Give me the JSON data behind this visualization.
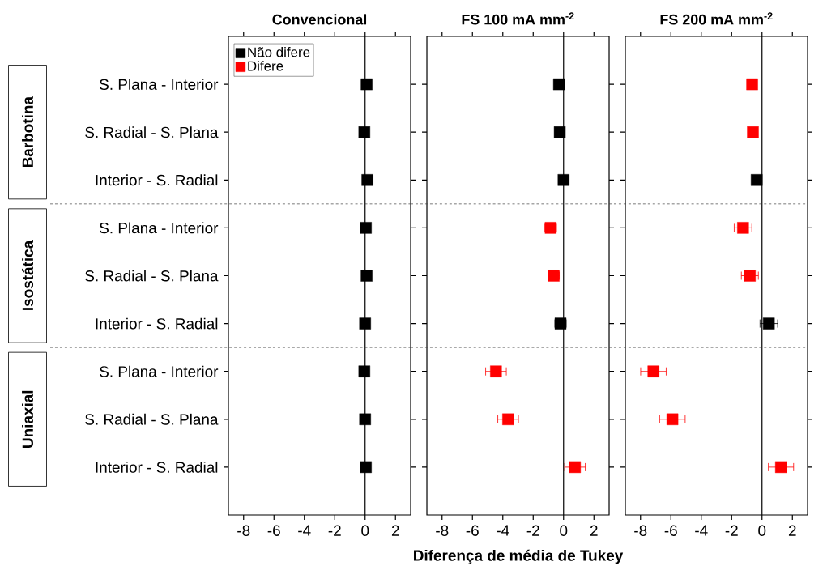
{
  "chart_data": [
    {
      "type": "scatter",
      "orientation": "horizontal",
      "title": "Convencional",
      "categories": [
        "S. Plana - Interior",
        "S. Radial - S. Plana",
        "Interior - S. Radial",
        "S. Plana - Interior",
        "S. Radial - S. Plana",
        "Interior - S. Radial",
        "S. Plana - Interior",
        "S. Radial - S. Plana",
        "Interior - S. Radial"
      ],
      "xlim": [
        -9,
        3
      ],
      "xticks": [
        -8,
        -6,
        -4,
        -2,
        0,
        2
      ],
      "marker": "square",
      "legend": "top left",
      "series": [
        {
          "name": "Não difere",
          "color": "#000000",
          "values": [
            0.1,
            -0.05,
            0.15,
            0.05,
            0.1,
            0,
            -0.05,
            0,
            0.05
          ]
        },
        {
          "name": "Difere",
          "color": "#ff0000",
          "values": [
            null,
            null,
            null,
            null,
            null,
            null,
            null,
            null,
            null
          ]
        }
      ],
      "ref_lines": [
        {
          "axis": "x",
          "value": 0
        }
      ],
      "annotations": [
        "Barbotina",
        "Isostática",
        "Uniaxial"
      ]
    },
    {
      "type": "scatter",
      "orientation": "horizontal",
      "title": "FS 100 mA mm$^{-2}$",
      "xlabel": "Diferença de média de Tukey",
      "categories": [
        null,
        null,
        null,
        null,
        null,
        null,
        null,
        null,
        null
      ],
      "xlim": [
        -9,
        3
      ],
      "xticks": [
        -8,
        -6,
        -4,
        -2,
        0,
        2
      ],
      "marker": "square",
      "tick_labels": "x",
      "series": [
        {
          "color": "#000000",
          "values": [
            -0.3,
            -0.25,
            0,
            null,
            null,
            -0.2,
            null,
            null,
            null
          ],
          "errors": [
            null,
            null,
            null,
            null,
            null,
            0.37,
            null,
            null,
            null
          ]
        },
        {
          "color": "#ff0000",
          "values": [
            null,
            null,
            null,
            -0.85,
            -0.65,
            null,
            -4.45,
            -3.65,
            0.75
          ],
          "errors": [
            null,
            null,
            null,
            0.38,
            0.37,
            null,
            0.68,
            0.68,
            0.68
          ]
        }
      ],
      "ref_lines": [
        {
          "axis": "x",
          "value": 0
        }
      ]
    },
    {
      "type": "scatter",
      "orientation": "horizontal",
      "title": "FS 200 mA mm$^{-2}$",
      "categories": [
        null,
        null,
        null,
        null,
        null,
        null,
        null,
        null,
        null
      ],
      "xlim": [
        -9,
        3
      ],
      "xticks": [
        -8,
        -6,
        -4,
        -2,
        0,
        2
      ],
      "marker": "square",
      "tick_labels": "x",
      "series": [
        {
          "color": "#000000",
          "values": [
            null,
            null,
            -0.35,
            null,
            null,
            0.45,
            null,
            null,
            null
          ],
          "errors": [
            null,
            null,
            null,
            null,
            null,
            0.58,
            null,
            null,
            null
          ]
        },
        {
          "color": "#ff0000",
          "values": [
            -0.65,
            -0.6,
            null,
            -1.25,
            -0.8,
            null,
            -7.15,
            -5.9,
            1.25
          ],
          "errors": [
            null,
            null,
            null,
            0.58,
            0.56,
            null,
            0.84,
            0.84,
            0.83
          ]
        }
      ],
      "ref_lines": [
        {
          "axis": "x",
          "value": 0
        }
      ]
    }
  ]
}
